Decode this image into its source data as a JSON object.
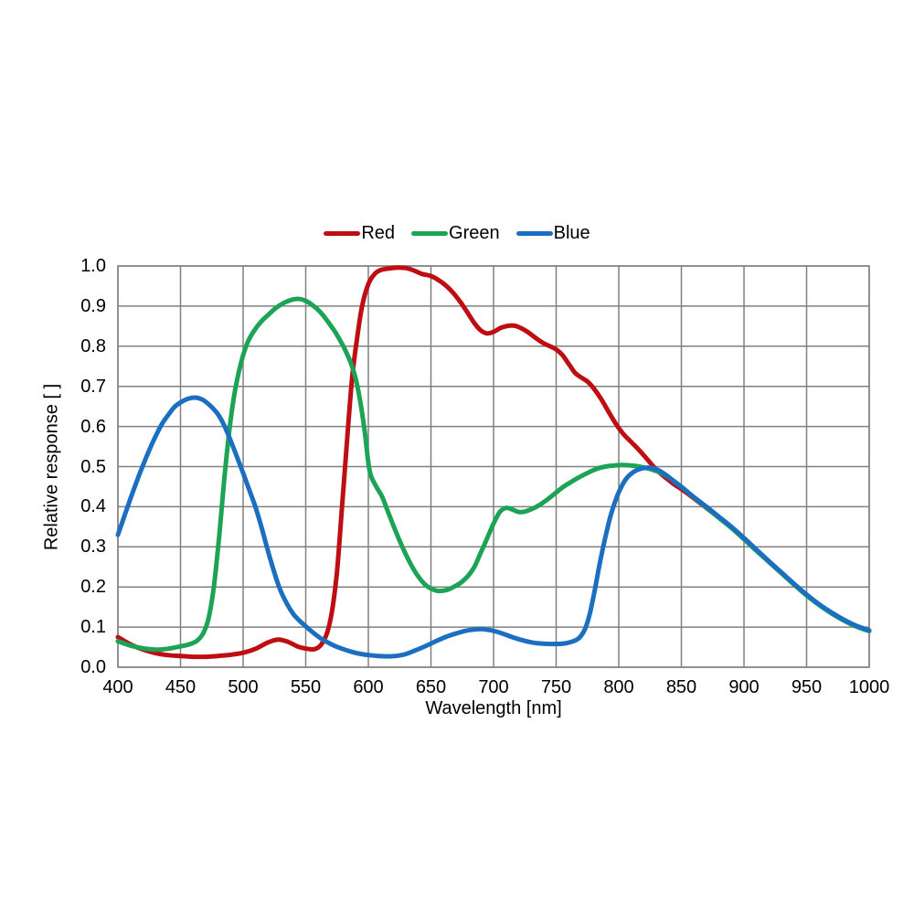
{
  "page": {
    "background": "#ffffff"
  },
  "chart_data": {
    "type": "line",
    "title": "",
    "xlabel": "Wavelength [nm]",
    "ylabel": "Relative response [ ]",
    "xlim": [
      400,
      1000
    ],
    "ylim": [
      0.0,
      1.0
    ],
    "x_ticks": [
      "400",
      "450",
      "500",
      "550",
      "600",
      "650",
      "700",
      "750",
      "800",
      "850",
      "900",
      "950",
      "1000"
    ],
    "y_ticks": [
      "0.0",
      "0.1",
      "0.2",
      "0.3",
      "0.4",
      "0.5",
      "0.6",
      "0.7",
      "0.8",
      "0.9",
      "1.0"
    ],
    "grid": true,
    "grid_color": "#808080",
    "axis_text_color": "#000000",
    "legend_position": "top-center",
    "line_width": 5,
    "series": [
      {
        "name": "Red",
        "color": "#bf0e13",
        "points": [
          [
            400,
            0.075
          ],
          [
            410,
            0.057
          ],
          [
            420,
            0.044
          ],
          [
            430,
            0.035
          ],
          [
            440,
            0.03
          ],
          [
            450,
            0.028
          ],
          [
            460,
            0.026
          ],
          [
            470,
            0.026
          ],
          [
            480,
            0.028
          ],
          [
            490,
            0.031
          ],
          [
            500,
            0.036
          ],
          [
            510,
            0.046
          ],
          [
            520,
            0.062
          ],
          [
            528,
            0.069
          ],
          [
            536,
            0.063
          ],
          [
            544,
            0.051
          ],
          [
            551,
            0.046
          ],
          [
            557,
            0.045
          ],
          [
            562,
            0.055
          ],
          [
            567,
            0.085
          ],
          [
            571,
            0.14
          ],
          [
            575,
            0.24
          ],
          [
            579,
            0.4
          ],
          [
            583,
            0.565
          ],
          [
            587,
            0.72
          ],
          [
            591,
            0.82
          ],
          [
            595,
            0.9
          ],
          [
            600,
            0.955
          ],
          [
            605,
            0.98
          ],
          [
            610,
            0.99
          ],
          [
            617,
            0.994
          ],
          [
            624,
            0.996
          ],
          [
            631,
            0.994
          ],
          [
            637,
            0.988
          ],
          [
            643,
            0.98
          ],
          [
            650,
            0.975
          ],
          [
            656,
            0.965
          ],
          [
            662,
            0.951
          ],
          [
            668,
            0.932
          ],
          [
            674,
            0.908
          ],
          [
            680,
            0.88
          ],
          [
            685,
            0.856
          ],
          [
            690,
            0.839
          ],
          [
            695,
            0.832
          ],
          [
            700,
            0.836
          ],
          [
            706,
            0.846
          ],
          [
            712,
            0.851
          ],
          [
            717,
            0.851
          ],
          [
            722,
            0.845
          ],
          [
            727,
            0.836
          ],
          [
            733,
            0.822
          ],
          [
            739,
            0.809
          ],
          [
            745,
            0.8
          ],
          [
            750,
            0.792
          ],
          [
            755,
            0.778
          ],
          [
            760,
            0.756
          ],
          [
            765,
            0.734
          ],
          [
            770,
            0.722
          ],
          [
            775,
            0.712
          ],
          [
            780,
            0.695
          ],
          [
            786,
            0.668
          ],
          [
            792,
            0.636
          ],
          [
            798,
            0.605
          ],
          [
            804,
            0.58
          ],
          [
            810,
            0.561
          ],
          [
            816,
            0.542
          ],
          [
            822,
            0.521
          ],
          [
            828,
            0.499
          ],
          [
            834,
            0.481
          ],
          [
            840,
            0.466
          ],
          [
            845,
            0.454
          ],
          [
            850,
            0.444
          ],
          [
            860,
            0.421
          ],
          [
            870,
            0.397
          ],
          [
            880,
            0.373
          ],
          [
            890,
            0.348
          ],
          [
            900,
            0.32
          ],
          [
            910,
            0.291
          ],
          [
            920,
            0.263
          ],
          [
            930,
            0.235
          ],
          [
            940,
            0.207
          ],
          [
            950,
            0.18
          ],
          [
            960,
            0.156
          ],
          [
            970,
            0.135
          ],
          [
            980,
            0.117
          ],
          [
            990,
            0.102
          ],
          [
            1000,
            0.091
          ]
        ]
      },
      {
        "name": "Green",
        "color": "#1da355",
        "points": [
          [
            400,
            0.065
          ],
          [
            410,
            0.054
          ],
          [
            420,
            0.047
          ],
          [
            430,
            0.044
          ],
          [
            440,
            0.046
          ],
          [
            450,
            0.052
          ],
          [
            458,
            0.058
          ],
          [
            464,
            0.068
          ],
          [
            469,
            0.09
          ],
          [
            473,
            0.13
          ],
          [
            477,
            0.21
          ],
          [
            481,
            0.33
          ],
          [
            485,
            0.47
          ],
          [
            489,
            0.59
          ],
          [
            493,
            0.68
          ],
          [
            498,
            0.755
          ],
          [
            503,
            0.805
          ],
          [
            508,
            0.835
          ],
          [
            514,
            0.86
          ],
          [
            520,
            0.878
          ],
          [
            526,
            0.895
          ],
          [
            532,
            0.907
          ],
          [
            538,
            0.915
          ],
          [
            544,
            0.918
          ],
          [
            550,
            0.913
          ],
          [
            556,
            0.901
          ],
          [
            562,
            0.884
          ],
          [
            568,
            0.86
          ],
          [
            574,
            0.833
          ],
          [
            580,
            0.8
          ],
          [
            585,
            0.766
          ],
          [
            589,
            0.73
          ],
          [
            593,
            0.672
          ],
          [
            597,
            0.59
          ],
          [
            601,
            0.49
          ],
          [
            606,
            0.452
          ],
          [
            611,
            0.425
          ],
          [
            616,
            0.385
          ],
          [
            621,
            0.345
          ],
          [
            627,
            0.301
          ],
          [
            633,
            0.262
          ],
          [
            639,
            0.23
          ],
          [
            645,
            0.207
          ],
          [
            650,
            0.196
          ],
          [
            656,
            0.19
          ],
          [
            662,
            0.192
          ],
          [
            668,
            0.2
          ],
          [
            674,
            0.211
          ],
          [
            680,
            0.229
          ],
          [
            685,
            0.252
          ],
          [
            690,
            0.287
          ],
          [
            695,
            0.322
          ],
          [
            700,
            0.358
          ],
          [
            705,
            0.387
          ],
          [
            710,
            0.397
          ],
          [
            715,
            0.393
          ],
          [
            720,
            0.387
          ],
          [
            725,
            0.388
          ],
          [
            731,
            0.395
          ],
          [
            737,
            0.405
          ],
          [
            743,
            0.418
          ],
          [
            749,
            0.433
          ],
          [
            755,
            0.448
          ],
          [
            761,
            0.46
          ],
          [
            767,
            0.471
          ],
          [
            773,
            0.481
          ],
          [
            779,
            0.49
          ],
          [
            785,
            0.497
          ],
          [
            791,
            0.501
          ],
          [
            797,
            0.503
          ],
          [
            803,
            0.504
          ],
          [
            809,
            0.503
          ],
          [
            815,
            0.501
          ],
          [
            821,
            0.497
          ],
          [
            827,
            0.492
          ],
          [
            833,
            0.485
          ],
          [
            839,
            0.475
          ],
          [
            845,
            0.462
          ],
          [
            850,
            0.45
          ],
          [
            860,
            0.423
          ],
          [
            870,
            0.398
          ],
          [
            880,
            0.372
          ],
          [
            890,
            0.347
          ],
          [
            900,
            0.319
          ],
          [
            910,
            0.29
          ],
          [
            920,
            0.262
          ],
          [
            930,
            0.234
          ],
          [
            940,
            0.206
          ],
          [
            950,
            0.179
          ],
          [
            960,
            0.155
          ],
          [
            970,
            0.134
          ],
          [
            980,
            0.116
          ],
          [
            990,
            0.101
          ],
          [
            1000,
            0.09
          ]
        ]
      },
      {
        "name": "Blue",
        "color": "#1c6fc0",
        "points": [
          [
            400,
            0.33
          ],
          [
            405,
            0.375
          ],
          [
            410,
            0.42
          ],
          [
            415,
            0.463
          ],
          [
            420,
            0.503
          ],
          [
            425,
            0.541
          ],
          [
            430,
            0.575
          ],
          [
            435,
            0.605
          ],
          [
            440,
            0.628
          ],
          [
            445,
            0.648
          ],
          [
            450,
            0.66
          ],
          [
            456,
            0.669
          ],
          [
            462,
            0.672
          ],
          [
            468,
            0.666
          ],
          [
            474,
            0.651
          ],
          [
            480,
            0.63
          ],
          [
            485,
            0.602
          ],
          [
            490,
            0.565
          ],
          [
            495,
            0.525
          ],
          [
            500,
            0.484
          ],
          [
            505,
            0.441
          ],
          [
            510,
            0.398
          ],
          [
            515,
            0.345
          ],
          [
            520,
            0.288
          ],
          [
            525,
            0.235
          ],
          [
            530,
            0.19
          ],
          [
            535,
            0.158
          ],
          [
            540,
            0.133
          ],
          [
            545,
            0.116
          ],
          [
            550,
            0.102
          ],
          [
            556,
            0.086
          ],
          [
            562,
            0.072
          ],
          [
            568,
            0.061
          ],
          [
            574,
            0.052
          ],
          [
            580,
            0.045
          ],
          [
            587,
            0.038
          ],
          [
            594,
            0.033
          ],
          [
            601,
            0.03
          ],
          [
            608,
            0.028
          ],
          [
            615,
            0.027
          ],
          [
            622,
            0.028
          ],
          [
            629,
            0.032
          ],
          [
            636,
            0.04
          ],
          [
            643,
            0.049
          ],
          [
            650,
            0.059
          ],
          [
            657,
            0.069
          ],
          [
            664,
            0.078
          ],
          [
            671,
            0.085
          ],
          [
            678,
            0.091
          ],
          [
            685,
            0.094
          ],
          [
            690,
            0.095
          ],
          [
            696,
            0.093
          ],
          [
            702,
            0.089
          ],
          [
            708,
            0.083
          ],
          [
            714,
            0.076
          ],
          [
            720,
            0.07
          ],
          [
            726,
            0.065
          ],
          [
            732,
            0.061
          ],
          [
            738,
            0.059
          ],
          [
            744,
            0.058
          ],
          [
            750,
            0.058
          ],
          [
            756,
            0.059
          ],
          [
            762,
            0.063
          ],
          [
            768,
            0.072
          ],
          [
            773,
            0.095
          ],
          [
            777,
            0.135
          ],
          [
            781,
            0.195
          ],
          [
            785,
            0.262
          ],
          [
            789,
            0.32
          ],
          [
            793,
            0.372
          ],
          [
            797,
            0.412
          ],
          [
            801,
            0.443
          ],
          [
            806,
            0.47
          ],
          [
            811,
            0.485
          ],
          [
            816,
            0.493
          ],
          [
            821,
            0.497
          ],
          [
            826,
            0.497
          ],
          [
            831,
            0.492
          ],
          [
            836,
            0.483
          ],
          [
            841,
            0.471
          ],
          [
            846,
            0.458
          ],
          [
            851,
            0.447
          ],
          [
            860,
            0.424
          ],
          [
            870,
            0.4
          ],
          [
            880,
            0.375
          ],
          [
            890,
            0.35
          ],
          [
            900,
            0.322
          ],
          [
            910,
            0.293
          ],
          [
            920,
            0.264
          ],
          [
            930,
            0.236
          ],
          [
            940,
            0.208
          ],
          [
            950,
            0.181
          ],
          [
            960,
            0.157
          ],
          [
            970,
            0.136
          ],
          [
            980,
            0.118
          ],
          [
            990,
            0.103
          ],
          [
            1000,
            0.092
          ]
        ]
      }
    ]
  }
}
